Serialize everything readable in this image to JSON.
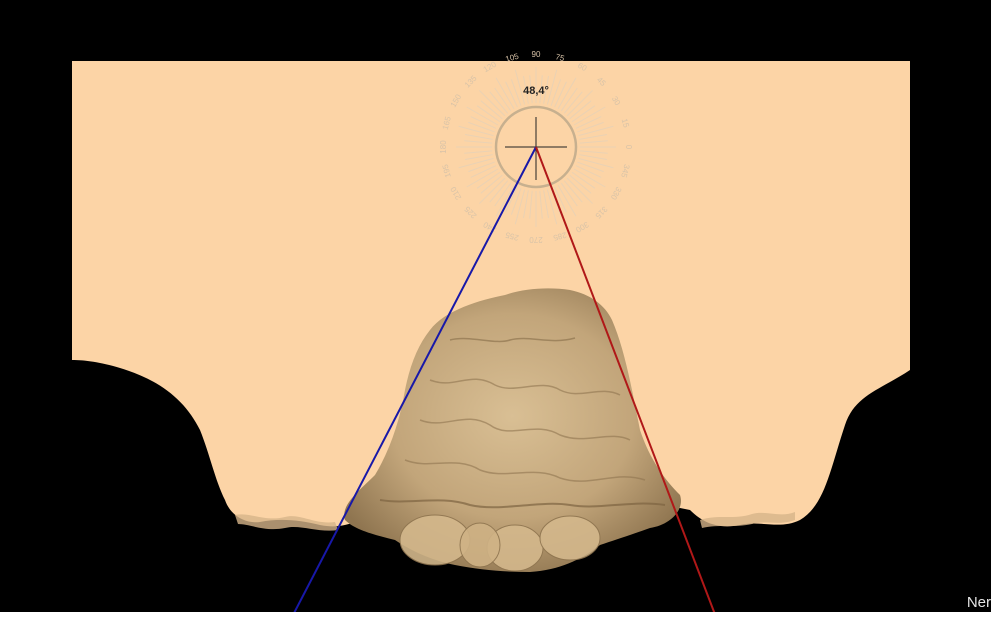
{
  "viewer": {
    "angle_readout": "48,4°",
    "corner_text": "Ner"
  },
  "protractor": {
    "tick_labels": [
      "105",
      "90",
      "75",
      "60",
      "45",
      "30",
      "15",
      "0",
      "345",
      "330",
      "315",
      "300",
      "285",
      "270",
      "255",
      "240",
      "225",
      "210",
      "195",
      "180",
      "165",
      "150",
      "135",
      "120"
    ]
  },
  "colors": {
    "background": "#000000",
    "plane": "#fcd4a6",
    "model": "#c2a57a",
    "blue_line": "#1818a8",
    "red_line": "#b01818"
  }
}
